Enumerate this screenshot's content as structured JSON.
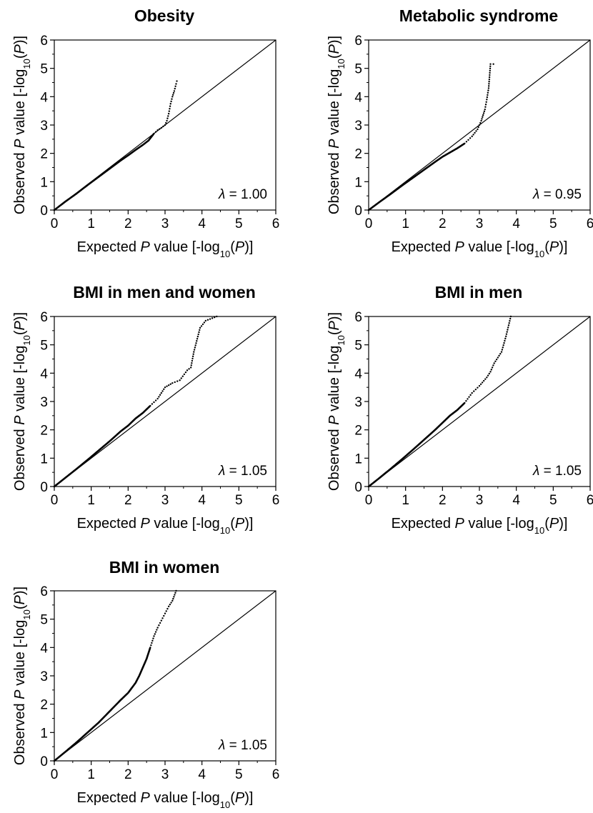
{
  "figure": {
    "background": "#ffffff",
    "ink": "#000000",
    "xlabel_prefix": "Expected ",
    "ylabel_prefix": "Observed ",
    "p_symbol": "P",
    "value_word": " value [-log",
    "log_base": "10",
    "paren_open": "(",
    "paren_close": ")]",
    "lambda_symbol": "λ",
    "lambda_sep": " = "
  },
  "chart_data": [
    {
      "type": "scatter",
      "title": "Obesity",
      "xlabel": "Expected P value [-log10(P)]",
      "ylabel": "Observed P value [-log10(P)]",
      "xlim": [
        0,
        6
      ],
      "ylim": [
        0,
        6
      ],
      "x_ticks": [
        0,
        1,
        2,
        3,
        4,
        5,
        6
      ],
      "y_ticks": [
        0,
        1,
        2,
        3,
        4,
        5,
        6
      ],
      "reference_line": "y = x",
      "lambda": "1.00",
      "points": [
        [
          0,
          0
        ],
        [
          0.3,
          0.3
        ],
        [
          0.6,
          0.58
        ],
        [
          0.9,
          0.88
        ],
        [
          1.2,
          1.17
        ],
        [
          1.5,
          1.46
        ],
        [
          1.8,
          1.75
        ],
        [
          2.0,
          1.93
        ],
        [
          2.2,
          2.12
        ],
        [
          2.4,
          2.3
        ],
        [
          2.55,
          2.45
        ],
        [
          2.7,
          2.7
        ],
        [
          2.8,
          2.82
        ],
        [
          2.9,
          2.9
        ],
        [
          3.0,
          3.0
        ],
        [
          3.05,
          3.15
        ],
        [
          3.1,
          3.4
        ],
        [
          3.15,
          3.75
        ],
        [
          3.2,
          4.0
        ],
        [
          3.25,
          4.2
        ],
        [
          3.3,
          4.45
        ],
        [
          3.32,
          4.55
        ]
      ]
    },
    {
      "type": "scatter",
      "title": "Metabolic syndrome",
      "xlabel": "Expected P value [-log10(P)]",
      "ylabel": "Observed P value [-log10(P)]",
      "xlim": [
        0,
        6
      ],
      "ylim": [
        0,
        6
      ],
      "x_ticks": [
        0,
        1,
        2,
        3,
        4,
        5,
        6
      ],
      "y_ticks": [
        0,
        1,
        2,
        3,
        4,
        5,
        6
      ],
      "reference_line": "y = x",
      "lambda": "0.95",
      "points": [
        [
          0,
          0
        ],
        [
          0.3,
          0.29
        ],
        [
          0.6,
          0.57
        ],
        [
          0.9,
          0.86
        ],
        [
          1.2,
          1.14
        ],
        [
          1.5,
          1.42
        ],
        [
          1.8,
          1.7
        ],
        [
          2.0,
          1.88
        ],
        [
          2.2,
          2.03
        ],
        [
          2.4,
          2.18
        ],
        [
          2.6,
          2.35
        ],
        [
          2.8,
          2.6
        ],
        [
          2.95,
          2.85
        ],
        [
          3.0,
          3.0
        ],
        [
          3.05,
          3.15
        ],
        [
          3.1,
          3.35
        ],
        [
          3.15,
          3.55
        ],
        [
          3.2,
          3.9
        ],
        [
          3.25,
          4.3
        ],
        [
          3.3,
          5.15
        ],
        [
          3.38,
          5.15
        ]
      ]
    },
    {
      "type": "scatter",
      "title": "BMI in men and women",
      "xlabel": "Expected P value [-log10(P)]",
      "ylabel": "Observed P value [-log10(P)]",
      "xlim": [
        0,
        6
      ],
      "ylim": [
        0,
        6
      ],
      "x_ticks": [
        0,
        1,
        2,
        3,
        4,
        5,
        6
      ],
      "y_ticks": [
        0,
        1,
        2,
        3,
        4,
        5,
        6
      ],
      "reference_line": "y = x",
      "lambda": "1.05",
      "points": [
        [
          0,
          0
        ],
        [
          0.3,
          0.31
        ],
        [
          0.6,
          0.62
        ],
        [
          0.9,
          0.94
        ],
        [
          1.2,
          1.27
        ],
        [
          1.5,
          1.6
        ],
        [
          1.8,
          1.95
        ],
        [
          2.0,
          2.15
        ],
        [
          2.2,
          2.4
        ],
        [
          2.4,
          2.6
        ],
        [
          2.6,
          2.85
        ],
        [
          2.8,
          3.1
        ],
        [
          3.0,
          3.5
        ],
        [
          3.2,
          3.65
        ],
        [
          3.4,
          3.75
        ],
        [
          3.6,
          4.1
        ],
        [
          3.7,
          4.2
        ],
        [
          3.78,
          4.75
        ],
        [
          3.95,
          5.6
        ],
        [
          4.1,
          5.85
        ],
        [
          4.4,
          6.0
        ]
      ]
    },
    {
      "type": "scatter",
      "title": "BMI in men",
      "xlabel": "Expected P value [-log10(P)]",
      "ylabel": "Observed P value [-log10(P)]",
      "xlim": [
        0,
        6
      ],
      "ylim": [
        0,
        6
      ],
      "x_ticks": [
        0,
        1,
        2,
        3,
        4,
        5,
        6
      ],
      "y_ticks": [
        0,
        1,
        2,
        3,
        4,
        5,
        6
      ],
      "reference_line": "y = x",
      "lambda": "1.05",
      "points": [
        [
          0,
          0
        ],
        [
          0.3,
          0.31
        ],
        [
          0.6,
          0.63
        ],
        [
          0.9,
          0.96
        ],
        [
          1.2,
          1.3
        ],
        [
          1.5,
          1.65
        ],
        [
          1.8,
          2.0
        ],
        [
          2.0,
          2.25
        ],
        [
          2.2,
          2.5
        ],
        [
          2.4,
          2.7
        ],
        [
          2.6,
          2.95
        ],
        [
          2.8,
          3.3
        ],
        [
          3.0,
          3.55
        ],
        [
          3.2,
          3.85
        ],
        [
          3.3,
          4.05
        ],
        [
          3.4,
          4.35
        ],
        [
          3.5,
          4.55
        ],
        [
          3.6,
          4.75
        ],
        [
          3.72,
          5.3
        ],
        [
          3.85,
          6.0
        ]
      ]
    },
    {
      "type": "scatter",
      "title": "BMI in women",
      "xlabel": "Expected P value [-log10(P)]",
      "ylabel": "Observed P value [-log10(P)]",
      "xlim": [
        0,
        6
      ],
      "ylim": [
        0,
        6
      ],
      "x_ticks": [
        0,
        1,
        2,
        3,
        4,
        5,
        6
      ],
      "y_ticks": [
        0,
        1,
        2,
        3,
        4,
        5,
        6
      ],
      "reference_line": "y = x",
      "lambda": "1.05",
      "points": [
        [
          0,
          0
        ],
        [
          0.3,
          0.32
        ],
        [
          0.6,
          0.65
        ],
        [
          0.9,
          1.0
        ],
        [
          1.2,
          1.35
        ],
        [
          1.5,
          1.75
        ],
        [
          1.8,
          2.15
        ],
        [
          2.0,
          2.4
        ],
        [
          2.2,
          2.75
        ],
        [
          2.3,
          3.0
        ],
        [
          2.4,
          3.3
        ],
        [
          2.5,
          3.6
        ],
        [
          2.6,
          4.0
        ],
        [
          2.7,
          4.4
        ],
        [
          2.8,
          4.7
        ],
        [
          2.9,
          4.95
        ],
        [
          3.0,
          5.2
        ],
        [
          3.1,
          5.45
        ],
        [
          3.2,
          5.65
        ],
        [
          3.3,
          6.0
        ]
      ]
    }
  ]
}
